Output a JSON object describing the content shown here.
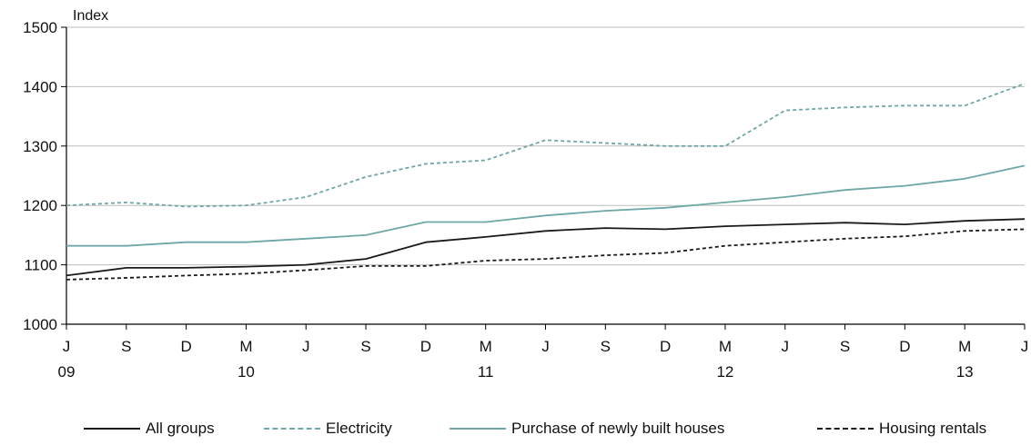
{
  "chart_data": {
    "type": "line",
    "ylabel": "Index",
    "ylim": [
      1000,
      1500
    ],
    "yticks": [
      1000,
      1100,
      1200,
      1300,
      1400,
      1500
    ],
    "x_tick_labels": [
      "J",
      "S",
      "D",
      "M",
      "J",
      "S",
      "D",
      "M",
      "J",
      "S",
      "D",
      "M",
      "J",
      "S",
      "D",
      "M",
      "J"
    ],
    "x_year_labels": [
      {
        "index": 0,
        "label": "09"
      },
      {
        "index": 3,
        "label": "10"
      },
      {
        "index": 7,
        "label": "11"
      },
      {
        "index": 11,
        "label": "12"
      },
      {
        "index": 15,
        "label": "13"
      }
    ],
    "grid": "horizontal",
    "legend_position": "bottom",
    "series": [
      {
        "name": "All groups",
        "color": "#1a1a1a",
        "style": "solid",
        "values": [
          1082,
          1095,
          1095,
          1097,
          1100,
          1110,
          1138,
          1147,
          1157,
          1162,
          1160,
          1165,
          1168,
          1171,
          1168,
          1174,
          1177
        ]
      },
      {
        "name": "Electricity",
        "color": "#6fa6a6",
        "style": "dashed",
        "values": [
          1200,
          1205,
          1198,
          1200,
          1214,
          1248,
          1270,
          1276,
          1310,
          1305,
          1300,
          1300,
          1360,
          1365,
          1368,
          1368,
          1405
        ]
      },
      {
        "name": "Purchase of newly built houses",
        "color": "#6fa6a6",
        "style": "solid",
        "values": [
          1132,
          1132,
          1138,
          1138,
          1144,
          1150,
          1172,
          1172,
          1183,
          1191,
          1196,
          1205,
          1214,
          1226,
          1233,
          1245,
          1267
        ]
      },
      {
        "name": "Housing rentals",
        "color": "#1a1a1a",
        "style": "dashed",
        "values": [
          1075,
          1078,
          1082,
          1085,
          1091,
          1098,
          1098,
          1107,
          1110,
          1116,
          1120,
          1132,
          1138,
          1144,
          1148,
          1157,
          1160
        ]
      }
    ]
  }
}
